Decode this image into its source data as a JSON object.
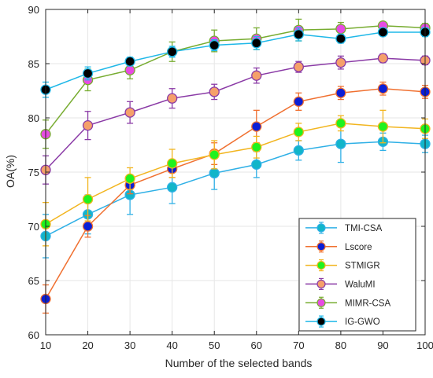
{
  "chart_data": {
    "type": "line",
    "title": "",
    "xlabel": "Number of the selected bands",
    "ylabel": "OA(%)",
    "x": [
      10,
      20,
      30,
      40,
      50,
      60,
      70,
      80,
      90,
      100
    ],
    "xlim": [
      10,
      100
    ],
    "ylim": [
      60,
      90
    ],
    "xticks": [
      "10",
      "20",
      "30",
      "40",
      "50",
      "60",
      "70",
      "80",
      "90",
      "100"
    ],
    "yticks": [
      "60",
      "65",
      "70",
      "75",
      "80",
      "85",
      "90"
    ],
    "grid": true,
    "legend_position": "bottom-right",
    "series": [
      {
        "name": "TMI-CSA",
        "line_color": "#2fb0e6",
        "marker_color": "#12b5c9",
        "values": [
          69.1,
          71.1,
          72.9,
          73.6,
          74.9,
          75.7,
          77.0,
          77.6,
          77.8,
          77.6
        ],
        "errors": [
          2.0,
          1.8,
          1.8,
          1.5,
          1.5,
          1.2,
          0.9,
          1.7,
          0.8,
          0.8
        ]
      },
      {
        "name": "Lscore",
        "line_color": "#f07030",
        "marker_color": "#0b1fd6",
        "values": [
          63.3,
          70.0,
          73.8,
          75.3,
          76.7,
          79.2,
          81.5,
          82.3,
          82.7,
          82.4
        ],
        "errors": [
          1.3,
          1.0,
          0.8,
          0.8,
          1.0,
          1.5,
          0.8,
          0.6,
          0.6,
          0.6
        ]
      },
      {
        "name": "STMIGR",
        "line_color": "#f2b51f",
        "marker_color": "#1ff21f",
        "values": [
          70.2,
          72.5,
          74.4,
          75.8,
          76.6,
          77.3,
          78.7,
          79.5,
          79.2,
          79.0
        ],
        "errors": [
          2.0,
          2.0,
          1.0,
          1.3,
          1.3,
          1.0,
          0.8,
          0.7,
          1.5,
          0.9
        ]
      },
      {
        "name": "WaluMI",
        "line_color": "#8a3aa6",
        "marker_color": "#f5a06a",
        "values": [
          75.2,
          79.3,
          80.5,
          81.8,
          82.4,
          83.9,
          84.7,
          85.1,
          85.5,
          85.3
        ],
        "errors": [
          1.3,
          1.3,
          1.0,
          0.9,
          0.7,
          0.7,
          0.5,
          0.6,
          0.4,
          0.4
        ]
      },
      {
        "name": "MIMR-CSA",
        "line_color": "#77ac30",
        "marker_color": "#e84be3",
        "values": [
          78.5,
          83.5,
          84.4,
          86.1,
          87.1,
          87.3,
          88.1,
          88.2,
          88.5,
          88.3
        ],
        "errors": [
          1.3,
          1.0,
          0.8,
          0.9,
          1.0,
          1.0,
          1.0,
          0.6,
          0.3,
          0.4
        ]
      },
      {
        "name": "IG-GWO",
        "line_color": "#1fb8e8",
        "marker_color": "#000000",
        "values": [
          82.6,
          84.1,
          85.2,
          86.1,
          86.7,
          86.9,
          87.7,
          87.3,
          87.9,
          87.9
        ],
        "errors": [
          0.7,
          0.6,
          0.4,
          0.5,
          0.5,
          0.6,
          0.6,
          0.4,
          0.3,
          0.4
        ]
      }
    ]
  }
}
